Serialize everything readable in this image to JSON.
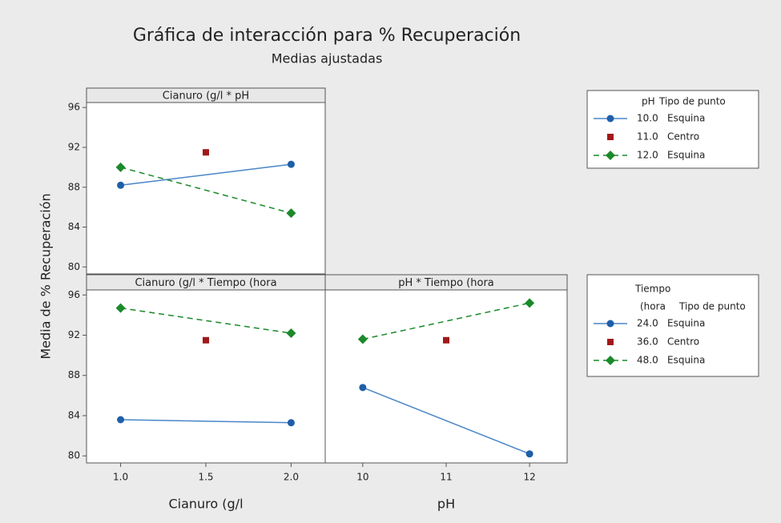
{
  "title": "Gráfica de interacción para % Recuperación",
  "subtitle": "Medias ajustadas",
  "ylabel": "Media de % Recuperación",
  "chart_data": [
    {
      "type": "line",
      "title": "Cianuro (g/l * pH",
      "xlim": [
        0.8,
        2.2
      ],
      "ylim": [
        79.3,
        96.5
      ],
      "yticks": [
        80,
        84,
        88,
        92,
        96
      ],
      "series": [
        {
          "x": [
            1.0,
            2.0
          ],
          "values": [
            88.2,
            90.3
          ],
          "color": "#1f5fa8",
          "marker": "circle",
          "dash": false
        },
        {
          "x": [
            1.5
          ],
          "values": [
            91.5
          ],
          "color": "#a01818",
          "marker": "square",
          "dash": false
        },
        {
          "x": [
            1.0,
            2.0
          ],
          "values": [
            90.0,
            85.4
          ],
          "color": "#1a8a2a",
          "marker": "diamond",
          "dash": true
        }
      ]
    },
    {
      "type": "line",
      "title": "Cianuro (g/l * Tiempo (hora",
      "xlabel": "Cianuro (g/l",
      "xlim": [
        0.8,
        2.2
      ],
      "ylim": [
        79.3,
        96.5
      ],
      "yticks": [
        80,
        84,
        88,
        92,
        96
      ],
      "xticks": [
        {
          "value": 1.0,
          "label": "1.0"
        },
        {
          "value": 1.5,
          "label": "1.5"
        },
        {
          "value": 2.0,
          "label": "2.0"
        }
      ],
      "series": [
        {
          "x": [
            1.0,
            2.0
          ],
          "values": [
            83.6,
            83.3
          ],
          "color": "#1f5fa8",
          "marker": "circle",
          "dash": false
        },
        {
          "x": [
            1.5
          ],
          "values": [
            91.5
          ],
          "color": "#a01818",
          "marker": "square",
          "dash": false
        },
        {
          "x": [
            1.0,
            2.0
          ],
          "values": [
            94.7,
            92.2
          ],
          "color": "#1a8a2a",
          "marker": "diamond",
          "dash": true
        }
      ]
    },
    {
      "type": "line",
      "title": "pH * Tiempo (hora",
      "xlabel": "pH",
      "xlim": [
        9.55,
        12.45
      ],
      "ylim": [
        79.3,
        96.5
      ],
      "xticks": [
        10,
        11,
        12
      ],
      "series": [
        {
          "x": [
            10,
            12
          ],
          "values": [
            86.8,
            80.2
          ],
          "color": "#1f5fa8",
          "marker": "circle",
          "dash": false
        },
        {
          "x": [
            11
          ],
          "values": [
            91.5
          ],
          "color": "#a01818",
          "marker": "square",
          "dash": false
        },
        {
          "x": [
            10,
            12
          ],
          "values": [
            91.6,
            95.2
          ],
          "color": "#1a8a2a",
          "marker": "diamond",
          "dash": true
        }
      ]
    }
  ],
  "legends": [
    {
      "title": "pH",
      "type_title": "Tipo de punto",
      "entries": [
        {
          "level": "10.0",
          "type": "Esquina"
        },
        {
          "level": "11.0",
          "type": "Centro"
        },
        {
          "level": "12.0",
          "type": "Esquina"
        }
      ]
    },
    {
      "title": "Tiempo",
      "title2": "(hora",
      "type_title": "Tipo de punto",
      "entries": [
        {
          "level": "24.0",
          "type": "Esquina"
        },
        {
          "level": "36.0",
          "type": "Centro"
        },
        {
          "level": "48.0",
          "type": "Esquina"
        }
      ]
    }
  ]
}
